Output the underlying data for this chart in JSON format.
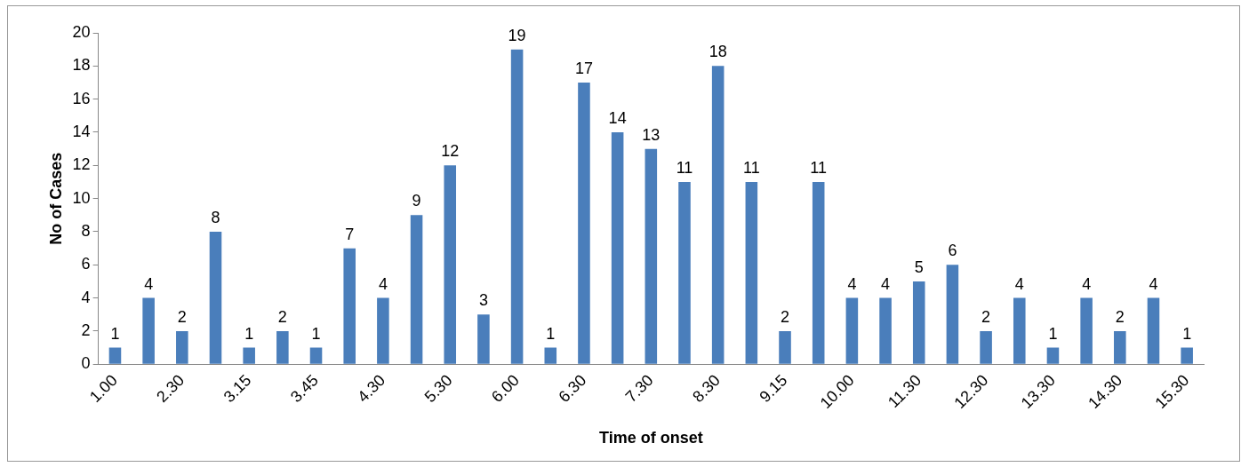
{
  "chart_data": {
    "type": "bar",
    "xlabel": "Time of onset",
    "ylabel": "No of Cases",
    "categories": [
      "1.00",
      null,
      "2.30",
      null,
      "3.15",
      null,
      "3.45",
      null,
      "4.30",
      null,
      "5.30",
      null,
      "6.00",
      null,
      "6.30",
      null,
      "7.30",
      null,
      "8.30",
      null,
      "9.15",
      null,
      "10.00",
      null,
      "11.30",
      null,
      "12.30",
      null,
      "13.30",
      null,
      "14.30",
      null,
      "15.30"
    ],
    "values": [
      1,
      4,
      2,
      8,
      1,
      2,
      1,
      7,
      4,
      9,
      12,
      3,
      19,
      1,
      17,
      14,
      13,
      11,
      18,
      11,
      2,
      11,
      4,
      4,
      5,
      6,
      2,
      4,
      1,
      4,
      2,
      4,
      1
    ],
    "color": "#4a7ebb",
    "ylim": [
      0,
      20
    ],
    "yticks": [
      0,
      2,
      4,
      6,
      8,
      10,
      12,
      14,
      16,
      18,
      20
    ],
    "data_labels": true,
    "grid": false,
    "legend": false
  }
}
